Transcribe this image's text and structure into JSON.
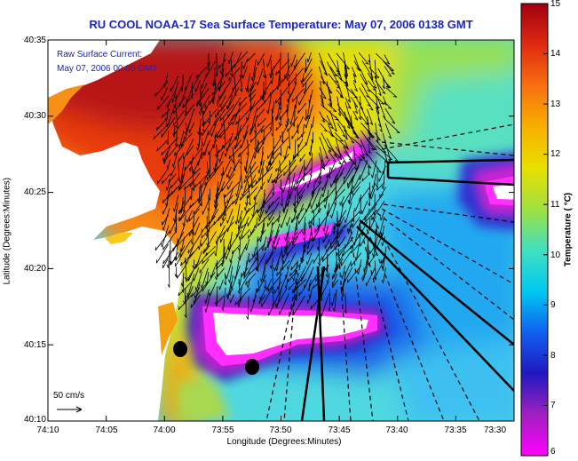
{
  "title": "RU COOL  NOAA-17  Sea Surface Temperature:  May 07, 2006 0138 GMT",
  "legend": {
    "line1": "Raw Surface Current:",
    "line2": "May 07, 2006 00:00 GMT"
  },
  "scale_label": "50 cm/s",
  "axes": {
    "x_title": "Longitude (Degrees:Minutes)",
    "y_title": "Latitude (Degrees:Minutes)",
    "lat_ticks": [
      "40:35",
      "40:30",
      "40:25",
      "40:20",
      "40:15",
      "40:10"
    ],
    "lon_ticks": [
      "74:10",
      "74:05",
      "74:00",
      "73:55",
      "73:50",
      "73:45",
      "73:40",
      "73:35",
      "73:30"
    ]
  },
  "colorbar": {
    "title": "Temperature ( °C)",
    "ticks": [
      "15",
      "14",
      "13",
      "12",
      "11",
      "10",
      "9",
      "8",
      "7",
      "6"
    ],
    "range": [
      6,
      15
    ],
    "stops": [
      "#a00010",
      "#e02a10",
      "#f87010",
      "#f8b000",
      "#e8e000",
      "#a0e040",
      "#40e0c0",
      "#00c8f0",
      "#1060f0",
      "#2018c0",
      "#a020c0",
      "#ff00ff"
    ]
  },
  "colors": {
    "title": "#1a24c8",
    "land": "#ffffff",
    "vectors": "#000000"
  }
}
